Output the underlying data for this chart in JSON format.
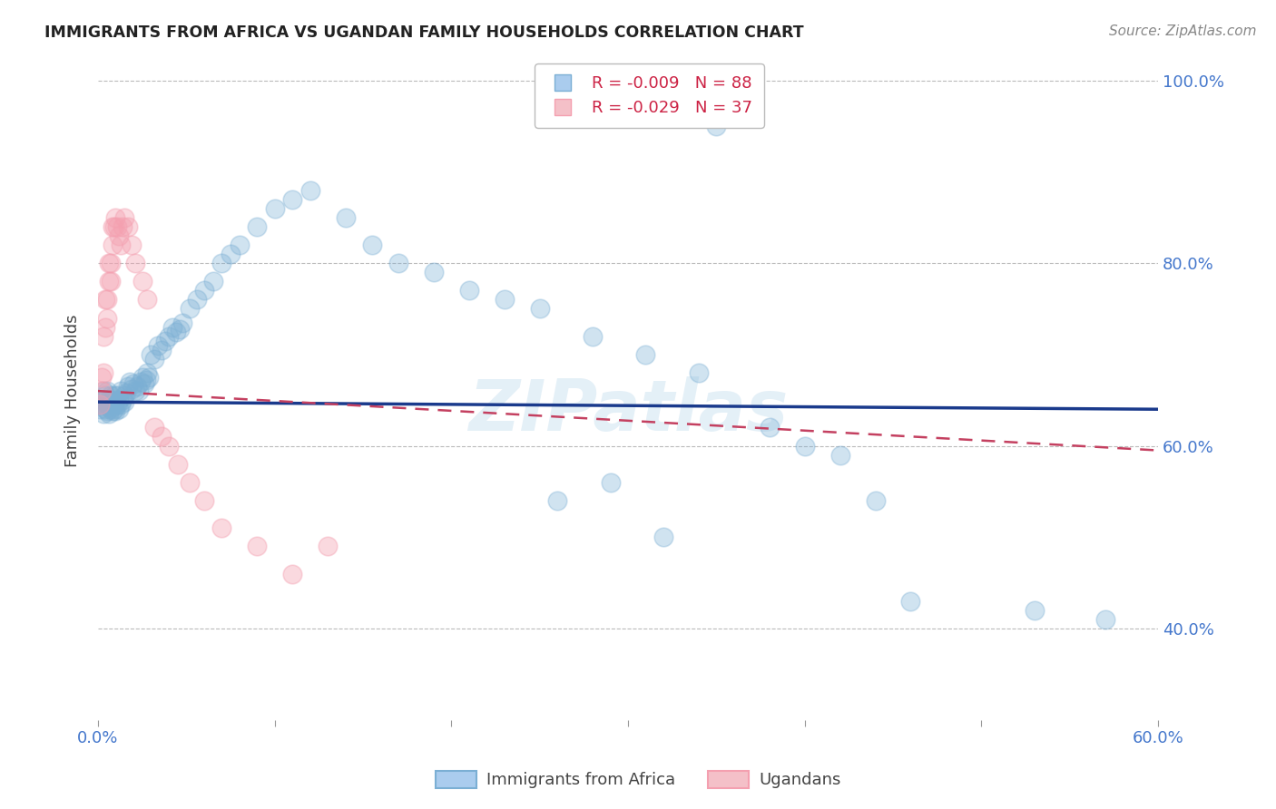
{
  "title": "IMMIGRANTS FROM AFRICA VS UGANDAN FAMILY HOUSEHOLDS CORRELATION CHART",
  "source": "Source: ZipAtlas.com",
  "ylabel": "Family Households",
  "legend_blue": {
    "R": "-0.009",
    "N": "88",
    "label": "Immigrants from Africa"
  },
  "legend_pink": {
    "R": "-0.029",
    "N": "37",
    "label": "Ugandans"
  },
  "blue_color": "#7BAFD4",
  "pink_color": "#F4A0B0",
  "blue_line_color": "#1A3A8C",
  "pink_line_color": "#C44060",
  "background_color": "#FFFFFF",
  "grid_color": "#BBBBBB",
  "title_color": "#222222",
  "axis_tick_color": "#4477CC",
  "watermark": "ZIPatlas",
  "blue_scatter_x": [
    0.001,
    0.002,
    0.002,
    0.003,
    0.003,
    0.003,
    0.004,
    0.004,
    0.005,
    0.005,
    0.005,
    0.006,
    0.006,
    0.007,
    0.007,
    0.007,
    0.008,
    0.008,
    0.008,
    0.009,
    0.009,
    0.01,
    0.01,
    0.011,
    0.011,
    0.012,
    0.012,
    0.013,
    0.013,
    0.014,
    0.015,
    0.015,
    0.016,
    0.017,
    0.018,
    0.019,
    0.02,
    0.021,
    0.022,
    0.023,
    0.024,
    0.025,
    0.026,
    0.027,
    0.028,
    0.029,
    0.03,
    0.032,
    0.034,
    0.036,
    0.038,
    0.04,
    0.042,
    0.044,
    0.046,
    0.048,
    0.052,
    0.056,
    0.06,
    0.065,
    0.07,
    0.075,
    0.08,
    0.09,
    0.1,
    0.11,
    0.12,
    0.14,
    0.155,
    0.17,
    0.19,
    0.21,
    0.23,
    0.25,
    0.28,
    0.31,
    0.34,
    0.38,
    0.4,
    0.42,
    0.35,
    0.29,
    0.26,
    0.32,
    0.46,
    0.53,
    0.57,
    0.44
  ],
  "blue_scatter_y": [
    0.64,
    0.645,
    0.65,
    0.635,
    0.65,
    0.66,
    0.64,
    0.655,
    0.638,
    0.645,
    0.66,
    0.635,
    0.65,
    0.64,
    0.655,
    0.645,
    0.638,
    0.65,
    0.643,
    0.64,
    0.655,
    0.638,
    0.648,
    0.645,
    0.655,
    0.64,
    0.65,
    0.645,
    0.66,
    0.65,
    0.655,
    0.648,
    0.658,
    0.665,
    0.67,
    0.662,
    0.668,
    0.66,
    0.665,
    0.66,
    0.67,
    0.675,
    0.668,
    0.672,
    0.68,
    0.675,
    0.7,
    0.695,
    0.71,
    0.705,
    0.715,
    0.72,
    0.73,
    0.725,
    0.728,
    0.735,
    0.75,
    0.76,
    0.77,
    0.78,
    0.8,
    0.81,
    0.82,
    0.84,
    0.86,
    0.87,
    0.88,
    0.85,
    0.82,
    0.8,
    0.79,
    0.77,
    0.76,
    0.75,
    0.72,
    0.7,
    0.68,
    0.62,
    0.6,
    0.59,
    0.95,
    0.56,
    0.54,
    0.5,
    0.43,
    0.42,
    0.41,
    0.54
  ],
  "pink_scatter_x": [
    0.001,
    0.002,
    0.002,
    0.003,
    0.003,
    0.004,
    0.004,
    0.005,
    0.005,
    0.006,
    0.006,
    0.007,
    0.007,
    0.008,
    0.008,
    0.009,
    0.01,
    0.011,
    0.012,
    0.013,
    0.014,
    0.015,
    0.017,
    0.019,
    0.021,
    0.025,
    0.028,
    0.032,
    0.036,
    0.04,
    0.045,
    0.052,
    0.06,
    0.07,
    0.09,
    0.11,
    0.13
  ],
  "pink_scatter_y": [
    0.645,
    0.66,
    0.675,
    0.68,
    0.72,
    0.73,
    0.76,
    0.74,
    0.76,
    0.78,
    0.8,
    0.78,
    0.8,
    0.82,
    0.84,
    0.84,
    0.85,
    0.84,
    0.83,
    0.82,
    0.84,
    0.85,
    0.84,
    0.82,
    0.8,
    0.78,
    0.76,
    0.62,
    0.61,
    0.6,
    0.58,
    0.56,
    0.54,
    0.51,
    0.49,
    0.46,
    0.49
  ],
  "xlim": [
    0.0,
    0.6
  ],
  "ylim": [
    0.3,
    1.02
  ],
  "y_ticks": [
    0.4,
    0.6,
    0.8,
    1.0
  ],
  "x_ticks_positions": [
    0.0,
    0.1,
    0.2,
    0.3,
    0.4,
    0.5,
    0.6
  ],
  "x_tick_labels_visible": [
    "0.0%",
    "",
    "",
    "",
    "",
    "",
    "60.0%"
  ],
  "blue_trend_x": [
    0.0,
    0.6
  ],
  "blue_trend_y": [
    0.648,
    0.64
  ],
  "pink_trend_x": [
    0.0,
    0.6
  ],
  "pink_trend_y": [
    0.66,
    0.595
  ]
}
